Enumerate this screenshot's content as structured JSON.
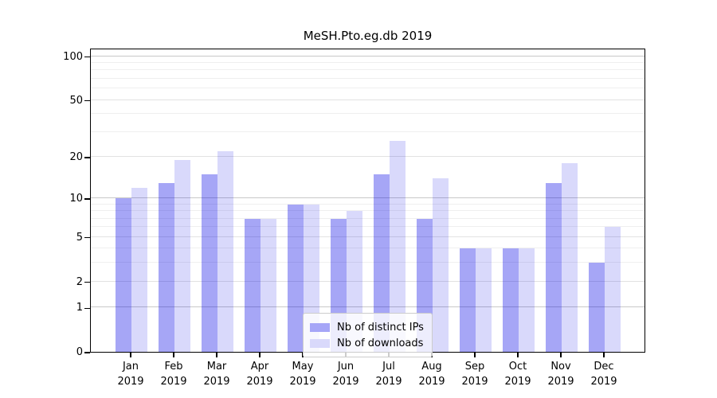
{
  "title": "MeSH.Pto.eg.db 2019",
  "chart_data": {
    "type": "bar",
    "title": "MeSH.Pto.eg.db 2019",
    "x_months": [
      "Jan",
      "Feb",
      "Mar",
      "Apr",
      "May",
      "Jun",
      "Jul",
      "Aug",
      "Sep",
      "Oct",
      "Nov",
      "Dec"
    ],
    "x_year": "2019",
    "series": [
      {
        "name": "Nb of distinct IPs",
        "swatch": "#a6a6f7",
        "fill": "rgba(0,0,230,0.35)",
        "values": [
          10,
          13,
          15,
          7,
          9,
          7,
          15,
          7,
          4,
          4,
          13,
          3
        ]
      },
      {
        "name": "Nb of downloads",
        "swatch": "#d9d9fb",
        "fill": "rgba(0,0,230,0.15)",
        "values": [
          12,
          19,
          22,
          7,
          9,
          8,
          26,
          14,
          4,
          4,
          18,
          6
        ]
      }
    ],
    "yscale": "log1p",
    "ylim": [
      0,
      114
    ],
    "ytick_values": [
      0,
      1,
      2,
      5,
      10,
      20,
      50,
      100
    ],
    "grid": {
      "major": [
        1,
        10,
        100
      ],
      "mid": [
        2,
        5,
        20,
        50
      ],
      "minor": [
        3,
        4,
        6,
        7,
        8,
        9,
        30,
        40,
        60,
        70,
        80,
        90
      ]
    },
    "legend_position": "lower-center",
    "grid_on": true
  }
}
